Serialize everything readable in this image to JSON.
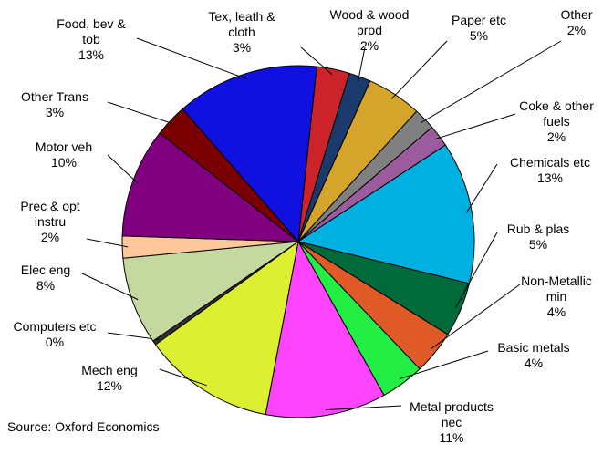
{
  "chart_data": {
    "type": "pie",
    "source": "Source: Oxford Economics",
    "start_angle": 6,
    "categories": [
      "Tex, leath & cloth",
      "Wood & wood prod",
      "Paper etc",
      "Other",
      "Coke & other fuels",
      "Chemicals etc",
      "Rub & plas",
      "Non-Metallic min",
      "Basic metals",
      "Metal products nec",
      "Mech eng",
      "Computers etc",
      "Elec eng",
      "Prec & opt instru",
      "Motor veh",
      "Other Trans",
      "Food, bev & tob"
    ],
    "values": [
      3,
      2,
      5,
      2,
      2,
      13,
      5,
      4,
      4,
      11,
      12,
      0.4,
      8,
      2,
      10,
      3,
      13
    ],
    "value_labels": [
      "3%",
      "2%",
      "5%",
      "2%",
      "2%",
      "13%",
      "5%",
      "4%",
      "4%",
      "11%",
      "12%",
      "0%",
      "8%",
      "2%",
      "10%",
      "3%",
      "13%"
    ],
    "colors": [
      "#cc2229",
      "#1a3a6e",
      "#d4a52a",
      "#808080",
      "#9c5b9c",
      "#00b0e0",
      "#006a3a",
      "#e05a28",
      "#22ee44",
      "#ff44ff",
      "#dcef30",
      "#303030",
      "#c5d8a0",
      "#ffc89a",
      "#800080",
      "#7a0000",
      "#1010e0"
    ]
  }
}
